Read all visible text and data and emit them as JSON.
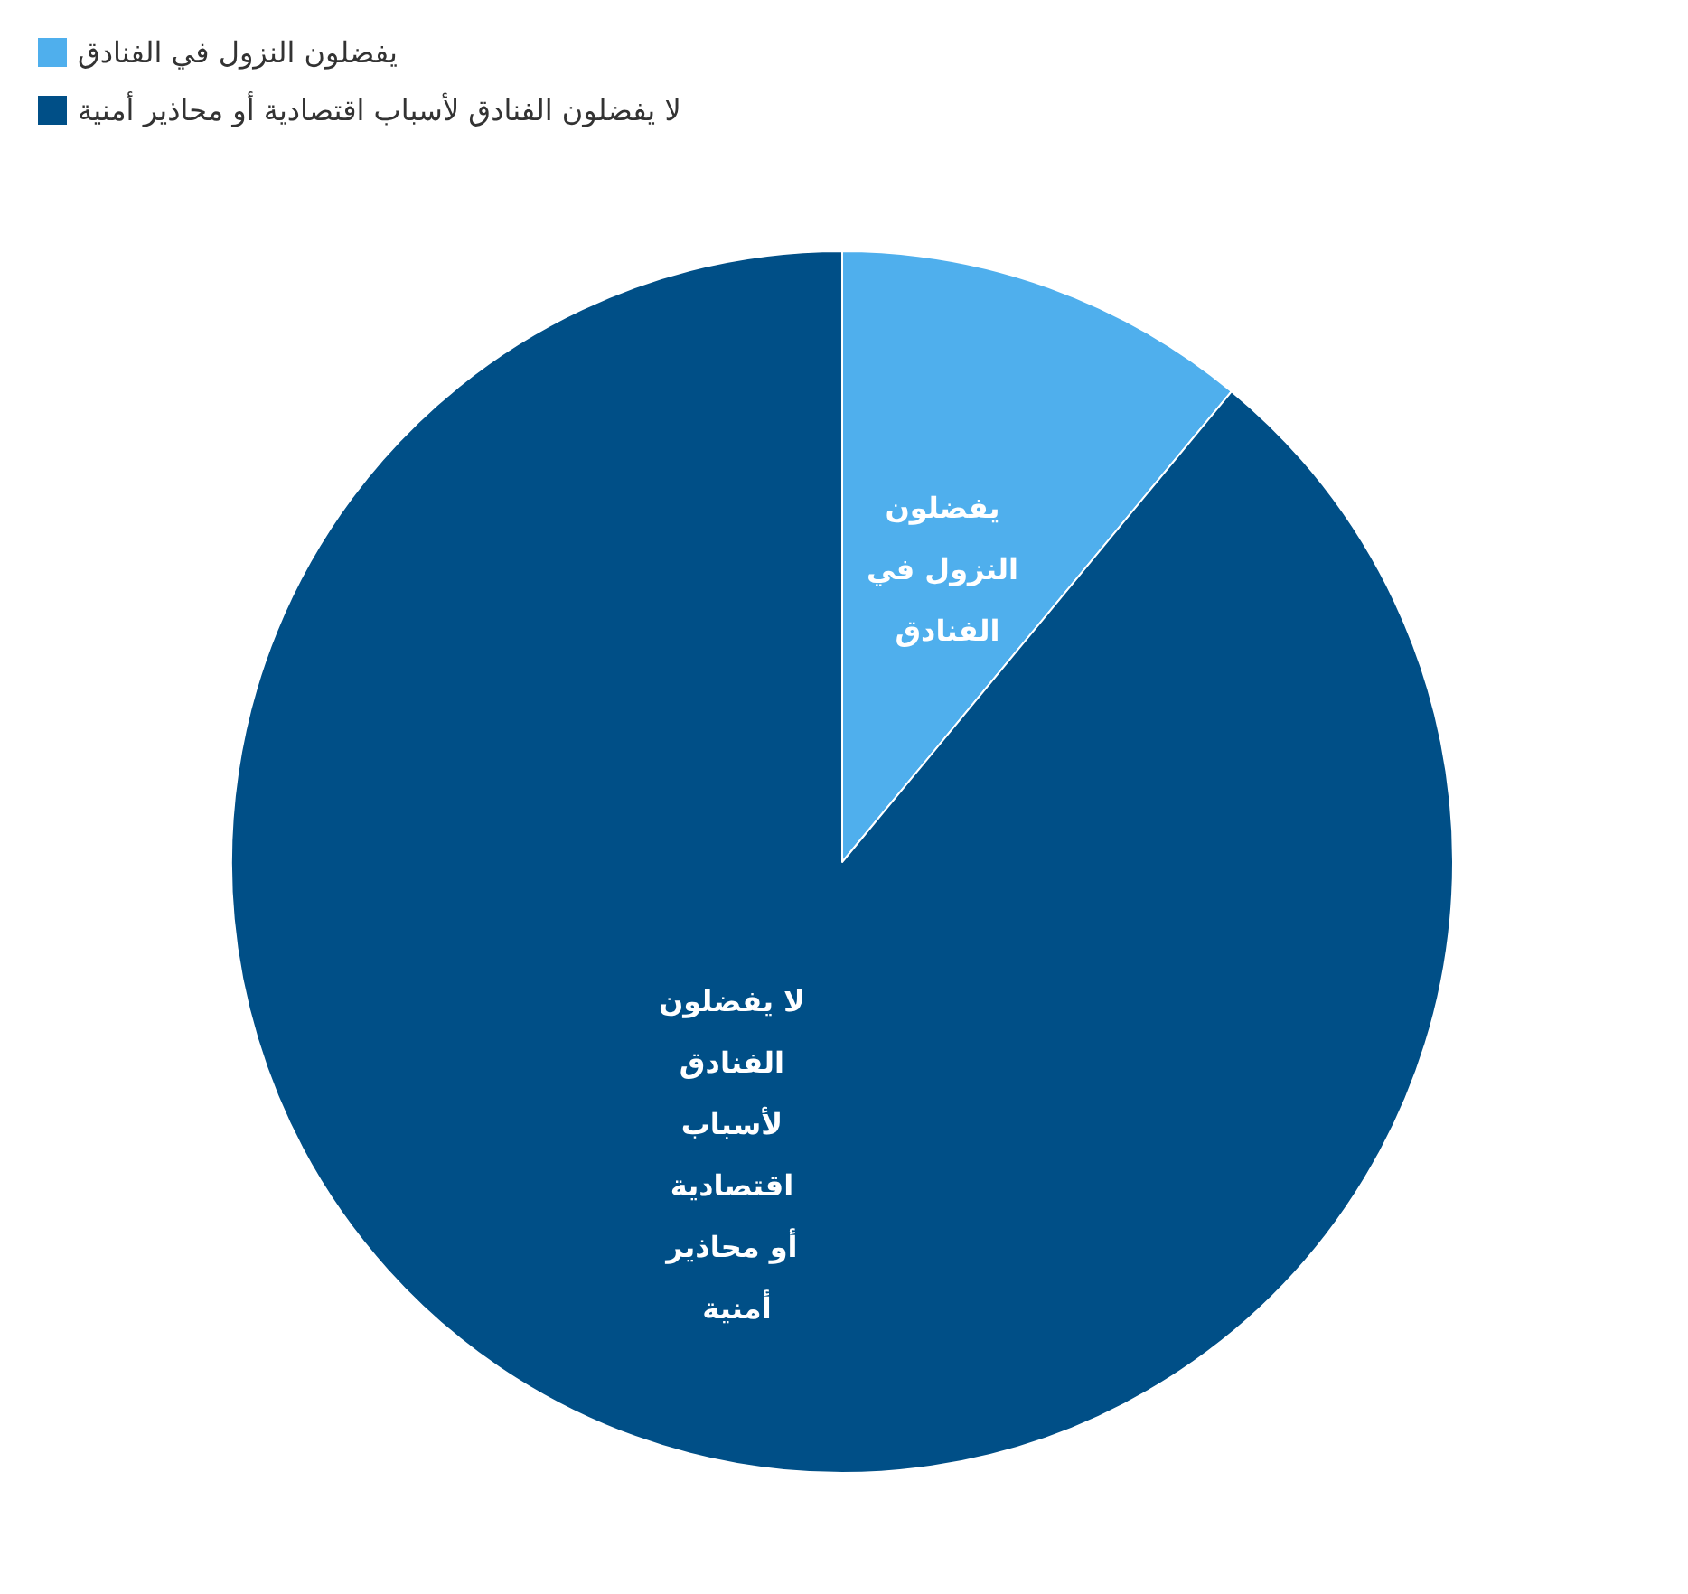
{
  "chart_data": {
    "type": "pie",
    "categories": [
      "يفضلون النزول في الفنادق",
      "لا يفضلون الفنادق لأسباب اقتصادية أو محاذير أمنية"
    ],
    "values": [
      11,
      89
    ],
    "colors": [
      "#4fafed",
      "#004f87"
    ],
    "legend": "top left"
  }
}
